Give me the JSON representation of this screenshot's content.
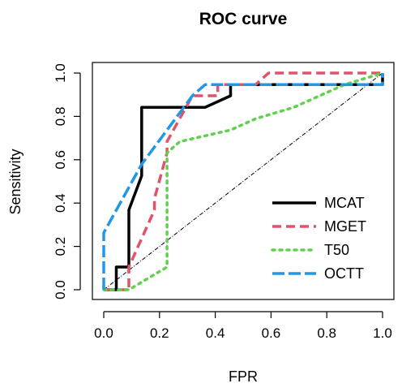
{
  "chart_data": {
    "type": "line",
    "title": "ROC curve",
    "xlabel": "FPR",
    "ylabel": "Sensitivity",
    "xlim": [
      0,
      1
    ],
    "ylim": [
      0,
      1
    ],
    "xticks": [
      "0.0",
      "0.2",
      "0.4",
      "0.6",
      "0.8",
      "1.0"
    ],
    "yticks": [
      "0.0",
      "0.2",
      "0.4",
      "0.6",
      "0.8",
      "1.0"
    ],
    "grid": false,
    "legend_position": "bottom-right",
    "diagonal_reference": true,
    "series": [
      {
        "name": "MCAT",
        "color": "#000000",
        "dash": "solid",
        "x": [
          0.0,
          0.045,
          0.045,
          0.09,
          0.09,
          0.136,
          0.136,
          0.364,
          0.455,
          0.455,
          1.0,
          1.0
        ],
        "y": [
          0.0,
          0.0,
          0.105,
          0.105,
          0.368,
          0.526,
          0.842,
          0.842,
          0.895,
          0.947,
          0.947,
          1.0
        ]
      },
      {
        "name": "MGET",
        "color": "#DF536B",
        "dash": "dashed",
        "x": [
          0.0,
          0.09,
          0.09,
          0.182,
          0.182,
          0.227,
          0.227,
          0.318,
          0.409,
          0.409,
          0.545,
          0.545,
          0.591,
          0.591,
          1.0
        ],
        "y": [
          0.0,
          0.0,
          0.105,
          0.368,
          0.421,
          0.632,
          0.684,
          0.895,
          0.895,
          0.947,
          0.947,
          0.947,
          1.0,
          1.0,
          1.0
        ]
      },
      {
        "name": "T50",
        "color": "#61D04F",
        "dash": "dotted",
        "x": [
          0.0,
          0.09,
          0.227,
          0.227,
          0.273,
          0.455,
          0.545,
          0.682,
          0.864,
          1.0
        ],
        "y": [
          0.0,
          0.0,
          0.105,
          0.632,
          0.684,
          0.737,
          0.789,
          0.842,
          0.947,
          1.0
        ]
      },
      {
        "name": "OCTT",
        "color": "#2297E6",
        "dash": "longdash",
        "x": [
          0.0,
          0.0,
          0.136,
          0.227,
          0.318,
          0.364,
          0.364,
          1.0,
          1.0
        ],
        "y": [
          0.0,
          0.263,
          0.579,
          0.737,
          0.895,
          0.947,
          0.947,
          0.947,
          1.0
        ]
      }
    ]
  }
}
